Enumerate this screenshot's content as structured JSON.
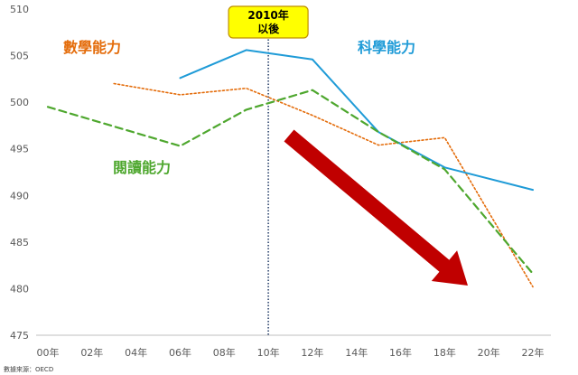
{
  "chart_data": {
    "type": "line",
    "x": [
      "00年",
      "02年",
      "04年",
      "06年",
      "08年",
      "10年",
      "12年",
      "14年",
      "16年",
      "18年",
      "20年",
      "22年"
    ],
    "ylim": [
      475,
      510
    ],
    "y_ticks": [
      475,
      480,
      485,
      490,
      495,
      500,
      505,
      510
    ],
    "grid": false,
    "series": [
      {
        "name": "數學能力",
        "color": "#E46C0A",
        "style": "dotted",
        "points": [
          {
            "x": 3,
            "y": 502.0
          },
          {
            "x": 6,
            "y": 500.8
          },
          {
            "x": 9,
            "y": 501.5
          },
          {
            "x": 12,
            "y": 498.6
          },
          {
            "x": 15,
            "y": 495.4
          },
          {
            "x": 18,
            "y": 496.2
          },
          {
            "x": 22,
            "y": 480.2
          }
        ]
      },
      {
        "name": "科學能力",
        "color": "#1F9BD7",
        "style": "solid",
        "points": [
          {
            "x": 6,
            "y": 502.6
          },
          {
            "x": 9,
            "y": 505.6
          },
          {
            "x": 12,
            "y": 504.6
          },
          {
            "x": 15,
            "y": 496.8
          },
          {
            "x": 18,
            "y": 493.0
          },
          {
            "x": 22,
            "y": 490.6
          }
        ]
      },
      {
        "name": "閱讀能力",
        "color": "#4EA72E",
        "style": "dashed",
        "points": [
          {
            "x": 0,
            "y": 499.5
          },
          {
            "x": 6,
            "y": 495.3
          },
          {
            "x": 9,
            "y": 499.2
          },
          {
            "x": 12,
            "y": 501.3
          },
          {
            "x": 15,
            "y": 496.8
          },
          {
            "x": 18,
            "y": 492.8
          },
          {
            "x": 22,
            "y": 481.6
          }
        ]
      }
    ],
    "annotations": {
      "callout_line1": "2010年",
      "callout_line2": "以後",
      "callout_x": 10
    },
    "source": "數據來源：OECD"
  }
}
